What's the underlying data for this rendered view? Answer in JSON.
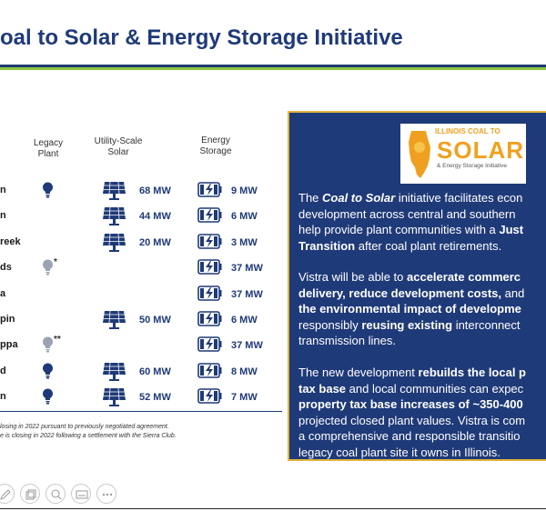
{
  "title": "oal to Solar & Energy Storage Initiative",
  "table": {
    "headers": {
      "legacy_line1": "Legacy",
      "legacy_line2": "Plant",
      "solar_line1": "Utility-Scale",
      "solar_line2": "Solar",
      "storage_line1": "Energy",
      "storage_line2": "Storage"
    },
    "rows": [
      {
        "name": "n",
        "legacy_icon": "bulb-dark",
        "asterisk": "",
        "solar_icon": "solar-panel-icon",
        "solar_mw": "68 MW",
        "storage_mw": "9 MW"
      },
      {
        "name": "n",
        "legacy_icon": "",
        "asterisk": "",
        "solar_icon": "solar-panel-icon",
        "solar_mw": "44 MW",
        "storage_mw": "6 MW"
      },
      {
        "name": "reek",
        "legacy_icon": "",
        "asterisk": "",
        "solar_icon": "solar-panel-icon",
        "solar_mw": "20 MW",
        "storage_mw": "3 MW"
      },
      {
        "name": "ds",
        "legacy_icon": "bulb-light",
        "asterisk": "*",
        "solar_icon": "",
        "solar_mw": "",
        "storage_mw": "37 MW"
      },
      {
        "name": "a",
        "legacy_icon": "",
        "asterisk": "",
        "solar_icon": "",
        "solar_mw": "",
        "storage_mw": "37 MW"
      },
      {
        "name": "pin",
        "legacy_icon": "",
        "asterisk": "",
        "solar_icon": "solar-panel-icon",
        "solar_mw": "50 MW",
        "storage_mw": "6 MW"
      },
      {
        "name": "ppa",
        "legacy_icon": "bulb-light",
        "asterisk": "**",
        "solar_icon": "",
        "solar_mw": "",
        "storage_mw": "37 MW"
      },
      {
        "name": "d",
        "legacy_icon": "bulb-dark",
        "asterisk": "",
        "solar_icon": "solar-panel-icon",
        "solar_mw": "60 MW",
        "storage_mw": "8 MW"
      },
      {
        "name": "n",
        "legacy_icon": "bulb-dark",
        "asterisk": "",
        "solar_icon": "solar-panel-icon",
        "solar_mw": "52 MW",
        "storage_mw": "7 MW"
      }
    ],
    "footnotes": [
      "losing in 2022 pursuant to previously negotiated agreement.",
      "e is closing in 2022 following a settlement with the Sierra Club."
    ]
  },
  "logo": {
    "line1": "ILLINOIS COAL TO",
    "line2": "SOLAR",
    "line3": "& Energy Storage Initiative"
  },
  "info": {
    "p1": {
      "a": "The ",
      "b": "Coal to Solar",
      "c": " initiative facilitates econ",
      "d": "development across central and southern",
      "e": "help provide plant communities with a ",
      "f": "Just",
      "g": "Transition",
      "h": " after coal plant retirements."
    },
    "p2": {
      "a": "Vistra will be able to ",
      "b": "accelerate commerc",
      "c": "delivery, reduce development costs,",
      "d": " and",
      "e": "the environmental impact of developme",
      "f": "responsibly ",
      "g": "reusing existing",
      "h": " interconnect",
      "i": "transmission lines."
    },
    "p3": {
      "a": "The new development ",
      "b": "rebuilds the local p",
      "c": "tax base",
      "d": " and local communities can expec",
      "e": "property tax base increases of ~350-400",
      "f": "projected closed plant values. Vistra is com",
      "g": "a comprehensive and responsible transitio",
      "h": "legacy coal plant site it owns in Illinois."
    }
  },
  "colors": {
    "navy": "#1f3a78",
    "green": "#8cc63f",
    "gold": "#e2b33c",
    "orange": "#f0a020"
  },
  "toolbar": {
    "icons": [
      "pencil-icon",
      "copy-slides-icon",
      "zoom-icon",
      "subtitles-icon",
      "more-icon"
    ]
  }
}
